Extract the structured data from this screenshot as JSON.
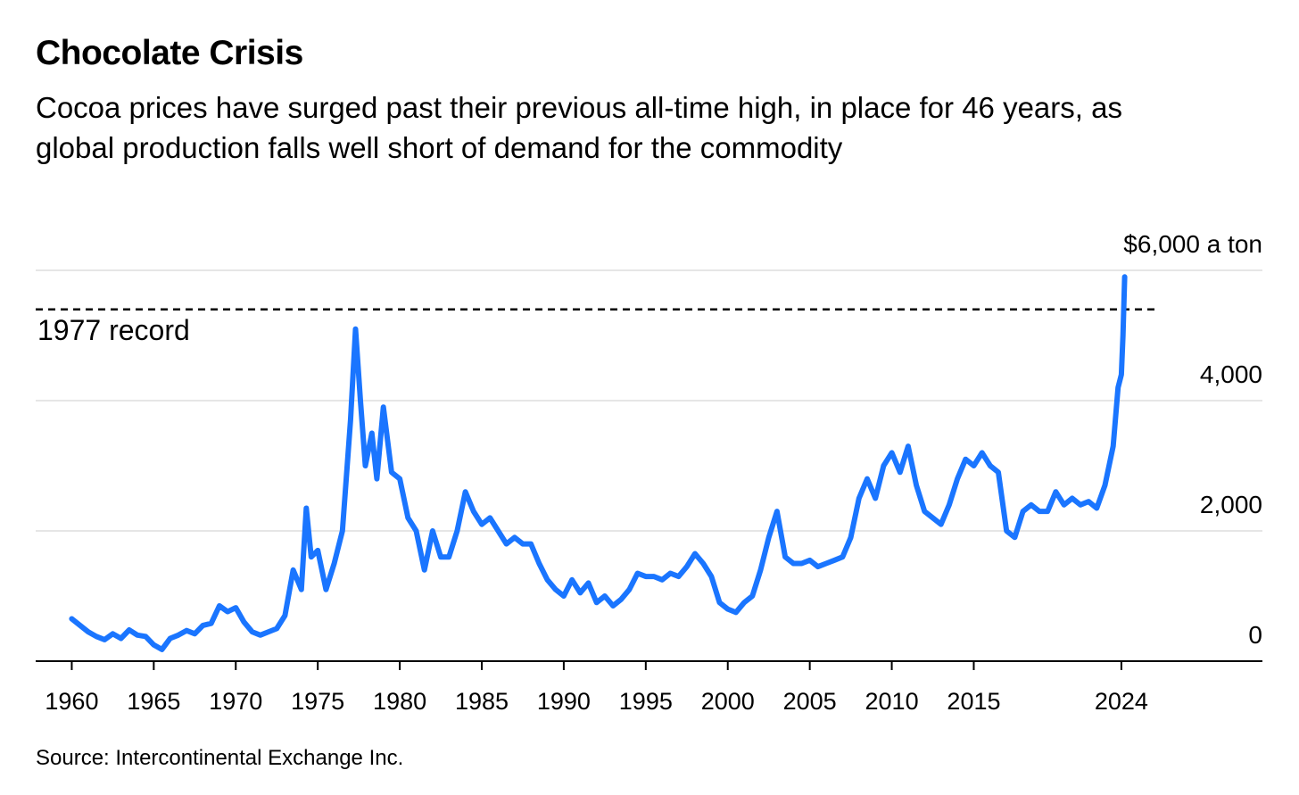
{
  "chart_data": {
    "type": "line",
    "title": "Chocolate Crisis",
    "subtitle": "Cocoa prices have surged past their previous all-time high, in place for 46 years, as global production falls well short of demand for the commodity",
    "source": "Source: Intercontinental Exchange Inc.",
    "xlim": [
      1957.8,
      2032.6
    ],
    "xticks": [
      1960,
      1965,
      1970,
      1975,
      1980,
      1985,
      1990,
      1995,
      2000,
      2005,
      2010,
      2015,
      2024
    ],
    "ylim": [
      0,
      6000
    ],
    "yticks": [
      0,
      {
        "value": 2000,
        "label": "2,000"
      },
      {
        "value": 4000,
        "label": "4,000"
      },
      {
        "value": 6000,
        "label": "$6,000 a ton"
      }
    ],
    "grid": true,
    "annotations": [
      {
        "text": "1977 record",
        "value": 5400
      }
    ],
    "series": [
      {
        "color": "#1a75ff",
        "x": [
          1960,
          1961,
          1961.5,
          1962,
          1962.5,
          1963,
          1963.5,
          1964,
          1964.5,
          1965,
          1965.5,
          1966,
          1966.5,
          1967,
          1967.5,
          1968,
          1968.5,
          1969,
          1969.5,
          1970,
          1970.5,
          1971,
          1971.5,
          1972,
          1972.5,
          1973,
          1973.5,
          1974,
          1974.3,
          1974.6,
          1975,
          1975.5,
          1976,
          1976.5,
          1977,
          1977.3,
          1977.6,
          1977.9,
          1978.3,
          1978.6,
          1979,
          1979.5,
          1980,
          1980.5,
          1981,
          1981.5,
          1982,
          1982.5,
          1983,
          1983.5,
          1984,
          1984.5,
          1985,
          1985.5,
          1986,
          1986.5,
          1987,
          1987.5,
          1988,
          1988.5,
          1989,
          1989.5,
          1990,
          1990.5,
          1991,
          1991.5,
          1992,
          1992.5,
          1993,
          1993.5,
          1994,
          1994.5,
          1995,
          1995.5,
          1996,
          1996.5,
          1997,
          1997.5,
          1998,
          1998.5,
          1999,
          1999.5,
          2000,
          2000.5,
          2001,
          2001.5,
          2002,
          2002.5,
          2003,
          2003.5,
          2004,
          2004.5,
          2005,
          2005.5,
          2006,
          2006.5,
          2007,
          2007.5,
          2008,
          2008.5,
          2009,
          2009.5,
          2010,
          2010.5,
          2011,
          2011.5,
          2012,
          2012.5,
          2013,
          2013.5,
          2014,
          2014.5,
          2015,
          2015.5,
          2016,
          2016.5,
          2017,
          2017.5,
          2018,
          2018.5,
          2019,
          2019.5,
          2020,
          2020.5,
          2021,
          2021.5,
          2022,
          2022.5,
          2023,
          2023.5,
          2023.8,
          2024,
          2024.1,
          2024.2
        ],
        "values": [
          650,
          450,
          380,
          330,
          420,
          350,
          480,
          400,
          380,
          250,
          180,
          350,
          400,
          470,
          420,
          550,
          580,
          850,
          760,
          820,
          600,
          450,
          400,
          450,
          500,
          700,
          1400,
          1100,
          2350,
          1600,
          1700,
          1100,
          1500,
          2000,
          3700,
          5100,
          4000,
          3000,
          3500,
          2800,
          3900,
          2900,
          2800,
          2200,
          2000,
          1400,
          2000,
          1600,
          1600,
          2000,
          2600,
          2300,
          2100,
          2200,
          2000,
          1800,
          1900,
          1800,
          1800,
          1500,
          1250,
          1100,
          1000,
          1250,
          1050,
          1200,
          900,
          1000,
          850,
          950,
          1100,
          1350,
          1300,
          1300,
          1250,
          1350,
          1300,
          1450,
          1650,
          1500,
          1300,
          900,
          800,
          750,
          900,
          1000,
          1400,
          1900,
          2300,
          1600,
          1500,
          1500,
          1550,
          1450,
          1500,
          1550,
          1600,
          1900,
          2500,
          2800,
          2500,
          3000,
          3200,
          2900,
          3300,
          2700,
          2300,
          2200,
          2100,
          2400,
          2800,
          3100,
          3000,
          3200,
          3000,
          2900,
          2000,
          1900,
          2300,
          2400,
          2300,
          2300,
          2600,
          2400,
          2500,
          2400,
          2450,
          2350,
          2700,
          3300,
          4200,
          4400,
          5000,
          5900
        ]
      }
    ]
  }
}
